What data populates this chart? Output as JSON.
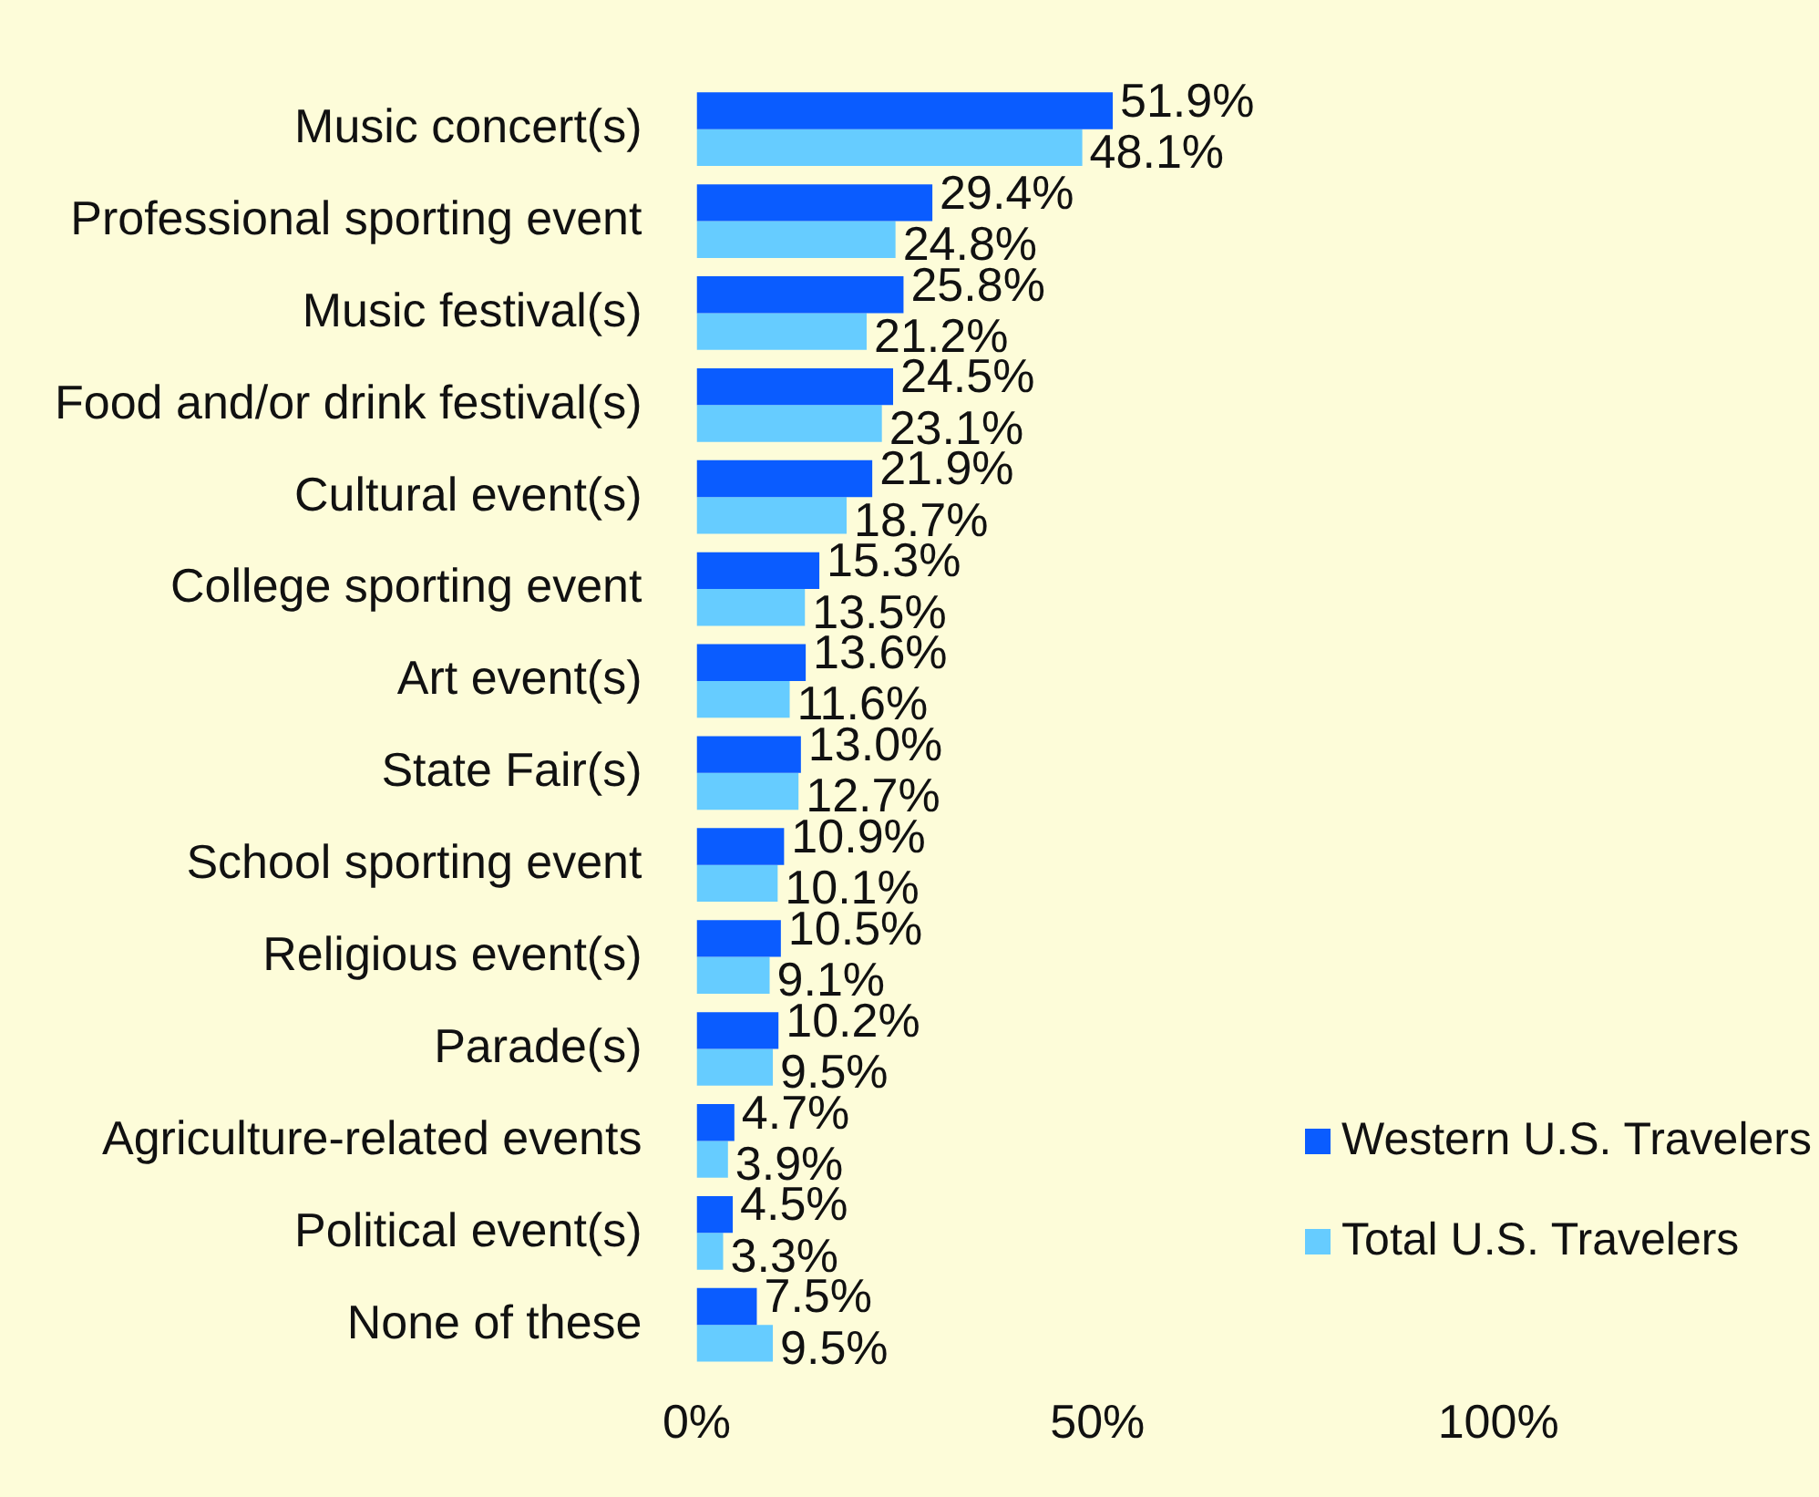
{
  "chart_data": {
    "type": "bar",
    "orientation": "horizontal",
    "categories": [
      "Music concert(s)",
      "Professional sporting event",
      "Music festival(s)",
      "Food and/or drink festival(s)",
      "Cultural event(s)",
      "College sporting event",
      "Art event(s)",
      "State Fair(s)",
      "School sporting event",
      "Religious event(s)",
      "Parade(s)",
      "Agriculture-related events",
      "Political event(s)",
      "None of these"
    ],
    "series": [
      {
        "name": "Western U.S. Travelers",
        "color": "#0a5cff",
        "values": [
          51.9,
          29.4,
          25.8,
          24.5,
          21.9,
          15.3,
          13.6,
          13.0,
          10.9,
          10.5,
          10.2,
          4.7,
          4.5,
          7.5
        ],
        "value_labels": [
          "51.9%",
          "29.4%",
          "25.8%",
          "24.5%",
          "21.9%",
          "15.3%",
          "13.6%",
          "13.0%",
          "10.9%",
          "10.5%",
          "10.2%",
          "4.7%",
          "4.5%",
          "7.5%"
        ]
      },
      {
        "name": "Total U.S. Travelers",
        "color": "#66ccff",
        "values": [
          48.1,
          24.8,
          21.2,
          23.1,
          18.7,
          13.5,
          11.6,
          12.7,
          10.1,
          9.1,
          9.5,
          3.9,
          3.3,
          9.5
        ],
        "value_labels": [
          "48.1%",
          "24.8%",
          "21.2%",
          "23.1%",
          "18.7%",
          "13.5%",
          "11.6%",
          "12.7%",
          "10.1%",
          "9.1%",
          "9.5%",
          "3.9%",
          "3.3%",
          "9.5%"
        ]
      }
    ],
    "xlim": [
      0,
      140
    ],
    "xticks": [
      {
        "value": 0,
        "label": "0%"
      },
      {
        "value": 50,
        "label": "50%"
      },
      {
        "value": 100,
        "label": "100%"
      }
    ],
    "grid": false,
    "legend": "bottom right"
  }
}
